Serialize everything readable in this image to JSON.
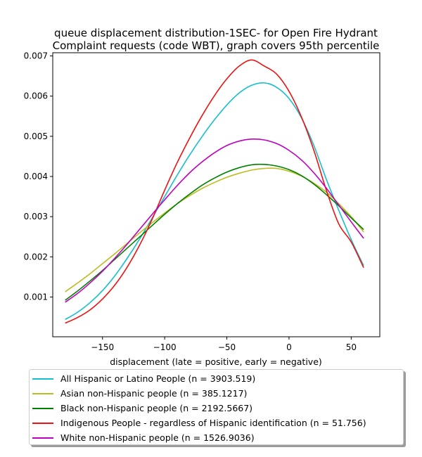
{
  "chart_data": {
    "type": "line",
    "title": "queue displacement distribution-1SEC-  for Open Fire Hydrant Complaint  requests (code WBT), graph covers 95th percentile",
    "title_lines": [
      "queue displacement distribution-1SEC-  for Open Fire Hydrant",
      "Complaint  requests (code WBT), graph covers 95th percentile"
    ],
    "xlabel": "displacement (late = positive, early = negative)",
    "ylabel": "",
    "xlim": [
      -190,
      73
    ],
    "ylim": [
      1e-05,
      0.00708
    ],
    "xticks": [
      -150,
      -100,
      -50,
      0,
      50
    ],
    "xtick_labels": [
      "−150",
      "−100",
      "−50",
      "0",
      "50"
    ],
    "yticks": [
      0.001,
      0.002,
      0.003,
      0.004,
      0.005,
      0.006,
      0.007
    ],
    "ytick_labels": [
      "0.001",
      "0.002",
      "0.003",
      "0.004",
      "0.005",
      "0.006",
      "0.007"
    ],
    "grid": false,
    "legend_position": "below",
    "x": [
      -180,
      -170,
      -160,
      -150,
      -140,
      -130,
      -120,
      -110,
      -100,
      -90,
      -80,
      -70,
      -60,
      -50,
      -40,
      -30,
      -20,
      -10,
      0,
      10,
      20,
      30,
      40,
      50,
      60
    ],
    "series": [
      {
        "name": "All Hispanic or Latino People (n = 3903.519)",
        "color": "#17becf",
        "values": [
          0.00044,
          0.00062,
          0.00086,
          0.00116,
          0.00153,
          0.00197,
          0.00245,
          0.00297,
          0.0035,
          0.00403,
          0.00453,
          0.00499,
          0.00541,
          0.00578,
          0.00608,
          0.00627,
          0.00633,
          0.00622,
          0.00594,
          0.00546,
          0.00477,
          0.00393,
          0.00316,
          0.00243,
          0.00178
        ]
      },
      {
        "name": "Asian non-Hispanic people (n = 385.1217)",
        "color": "#bcbd22",
        "values": [
          0.00113,
          0.00135,
          0.00158,
          0.00183,
          0.00208,
          0.00234,
          0.0026,
          0.00285,
          0.00309,
          0.00332,
          0.00352,
          0.0037,
          0.00385,
          0.00398,
          0.00408,
          0.00416,
          0.0042,
          0.0042,
          0.00413,
          0.00401,
          0.00383,
          0.00361,
          0.00332,
          0.003,
          0.00262
        ]
      },
      {
        "name": "Black non-Hispanic people (n = 2192.5667)",
        "color": "#008000",
        "values": [
          0.00092,
          0.00115,
          0.0014,
          0.00166,
          0.00194,
          0.00222,
          0.0025,
          0.00278,
          0.00306,
          0.00332,
          0.00356,
          0.00378,
          0.00396,
          0.00411,
          0.00422,
          0.00429,
          0.0043,
          0.00426,
          0.00417,
          0.00402,
          0.00381,
          0.00355,
          0.00327,
          0.00297,
          0.00268
        ]
      },
      {
        "name": "Indigenous People - regardless of Hispanic identification (n = 51.756)",
        "color": "#ee1111",
        "values": [
          0.00035,
          0.00049,
          0.00068,
          0.00095,
          0.0013,
          0.00175,
          0.0023,
          0.00294,
          0.00366,
          0.00434,
          0.00495,
          0.00551,
          0.00601,
          0.00643,
          0.00675,
          0.0069,
          0.00675,
          0.00655,
          0.00612,
          0.00548,
          0.00465,
          0.00366,
          0.00282,
          0.00237,
          0.00173
        ]
      },
      {
        "name": "White non-Hispanic people (n = 1526.9036)",
        "color": "#bf00bf",
        "values": [
          0.00087,
          0.00109,
          0.00135,
          0.00164,
          0.00197,
          0.00232,
          0.00269,
          0.00306,
          0.00342,
          0.00377,
          0.00409,
          0.00436,
          0.00459,
          0.00477,
          0.00488,
          0.00493,
          0.00491,
          0.00482,
          0.00465,
          0.00441,
          0.00409,
          0.00371,
          0.00329,
          0.00287,
          0.00246
        ]
      }
    ]
  }
}
